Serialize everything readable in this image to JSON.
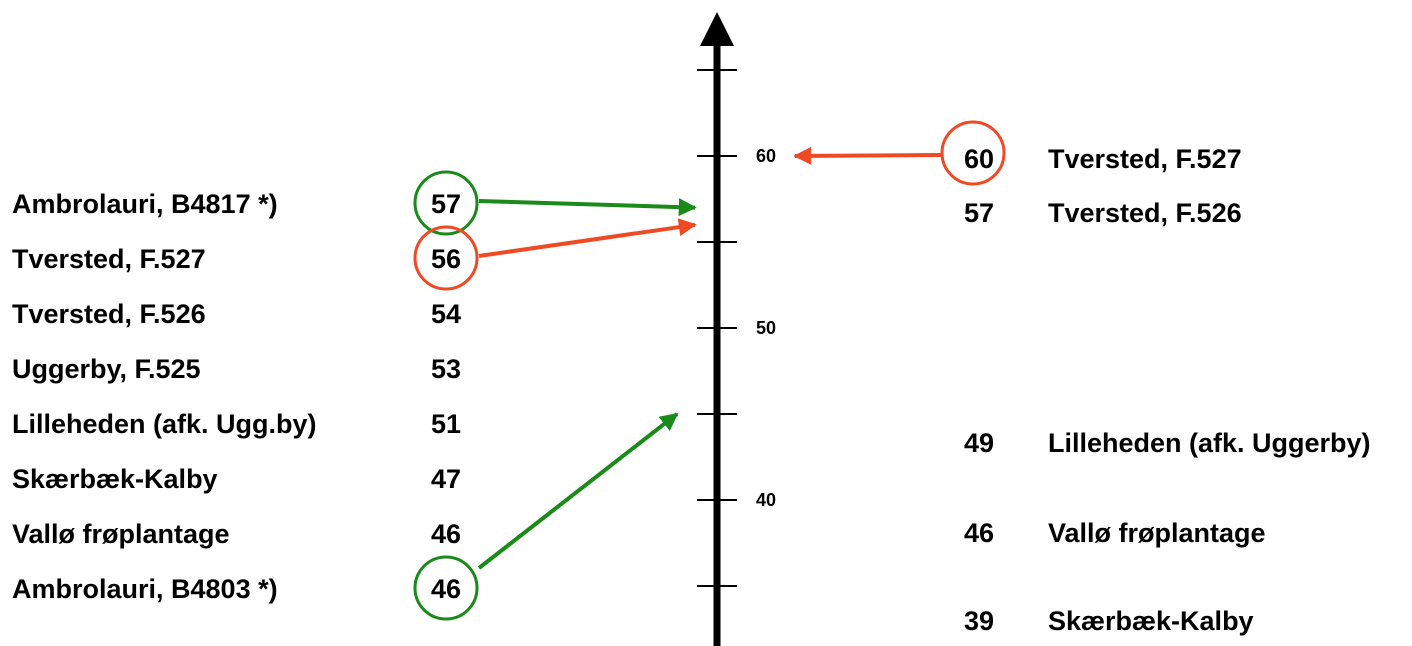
{
  "axis": {
    "ticks": [
      60,
      50,
      40
    ],
    "arrow_direction": "up"
  },
  "left_list": [
    {
      "name": "Ambrolauri, B4817 *)",
      "value": "57",
      "highlight": "green",
      "arrow_target": 57
    },
    {
      "name": "Tversted, F.527",
      "value": "56",
      "highlight": "red",
      "arrow_target": 56
    },
    {
      "name": "Tversted, F.526",
      "value": "54"
    },
    {
      "name": "Uggerby, F.525",
      "value": "53"
    },
    {
      "name": "Lilleheden (afk. Ugg.by)",
      "value": "51"
    },
    {
      "name": "Skærbæk-Kalby",
      "value": "47"
    },
    {
      "name": "Vallø frøplantage",
      "value": "46"
    },
    {
      "name": "Ambrolauri, B4803 *)",
      "value": "46",
      "highlight": "green",
      "arrow_target": 45
    }
  ],
  "right_list": [
    {
      "value": "60",
      "name": "Tversted, F.527",
      "highlight": "red",
      "arrow_target": 60
    },
    {
      "value": "57",
      "name": "Tversted, F.526"
    },
    {
      "value": "49",
      "name": "Lilleheden (afk. Uggerby)"
    },
    {
      "value": "46",
      "name": "Vallø frøplantage"
    },
    {
      "value": "39",
      "name": "Skærbæk-Kalby"
    }
  ],
  "colors": {
    "green": "#1a8a1a",
    "red": "#f04a24",
    "axis": "#000000"
  }
}
